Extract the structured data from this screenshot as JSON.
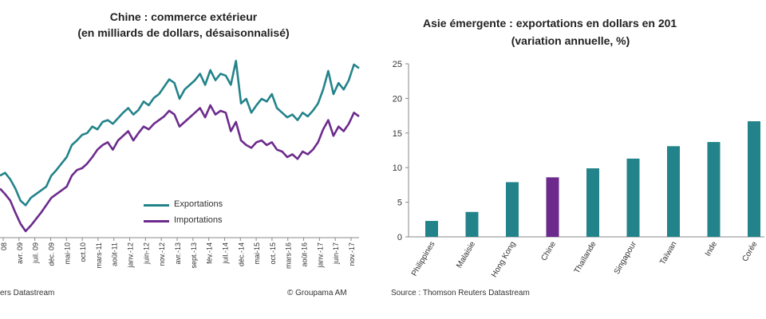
{
  "left_chart": {
    "title_line1": "Chine : commerce extérieur",
    "title_line2": "(en milliards de dollars, désaisonnalisé)",
    "source": "ers Datastream",
    "copyright": "© Groupama AM",
    "colors": {
      "exports": "#23838a",
      "imports": "#6c2b8c"
    },
    "chart_data": {
      "type": "line",
      "x_tick_labels": [
        "08",
        "avr. 09",
        "juil. 09",
        "déc. 09",
        "mai-10",
        "oct.10",
        "mars-11",
        "août-11",
        "janv.-12",
        "juin-12",
        "nov.-12",
        "avr.-13",
        "sept.-13",
        "fév.-14",
        "juil.-14",
        "déc.-14",
        "mai-15",
        "oct.-15",
        "mars-16",
        "août-16",
        "janv.-17",
        "juin-17",
        "nov.-17"
      ],
      "series": [
        {
          "name": "Exportations",
          "values": [
            112,
            115,
            108,
            98,
            85,
            80,
            88,
            92,
            96,
            100,
            112,
            118,
            125,
            132,
            145,
            150,
            156,
            158,
            165,
            162,
            170,
            172,
            168,
            174,
            180,
            185,
            178,
            183,
            192,
            188,
            196,
            200,
            208,
            216,
            212,
            195,
            205,
            210,
            215,
            222,
            210,
            226,
            215,
            222,
            220,
            210,
            236,
            190,
            195,
            180,
            188,
            195,
            192,
            200,
            185,
            180,
            175,
            178,
            172,
            180,
            176,
            182,
            190,
            205,
            225,
            200,
            212,
            205,
            215,
            232,
            228
          ]
        },
        {
          "name": "Importations",
          "values": [
            98,
            92,
            85,
            72,
            60,
            52,
            58,
            65,
            72,
            80,
            88,
            92,
            96,
            100,
            112,
            118,
            120,
            125,
            132,
            140,
            145,
            148,
            140,
            150,
            155,
            160,
            150,
            158,
            165,
            162,
            168,
            172,
            176,
            182,
            178,
            165,
            170,
            175,
            180,
            185,
            175,
            188,
            178,
            182,
            180,
            160,
            170,
            150,
            145,
            142,
            148,
            150,
            145,
            148,
            140,
            138,
            132,
            135,
            130,
            138,
            135,
            140,
            148,
            162,
            172,
            155,
            165,
            160,
            168,
            180,
            176
          ]
        }
      ]
    }
  },
  "right_chart": {
    "title_line1": "Asie émergente : exportations en dollars en 201",
    "title_line2": "(variation annuelle, %)",
    "source": "Source :  Thomson Reuters Datastream",
    "colors": {
      "default": "#23838a",
      "highlight": "#6c2b8c"
    },
    "chart_data": {
      "type": "bar",
      "categories": [
        "Philippines",
        "Malaisie",
        "Hong Kong",
        "Chine",
        "Thaïlande",
        "Singapour",
        "Taïwan",
        "Inde",
        "Corée"
      ],
      "values": [
        2.3,
        3.6,
        7.9,
        8.6,
        9.9,
        11.3,
        13.1,
        13.7,
        16.7
      ],
      "highlight": "Chine",
      "ylim": [
        0,
        25
      ],
      "y_ticks": [
        0,
        5,
        10,
        15,
        20,
        25
      ]
    }
  }
}
